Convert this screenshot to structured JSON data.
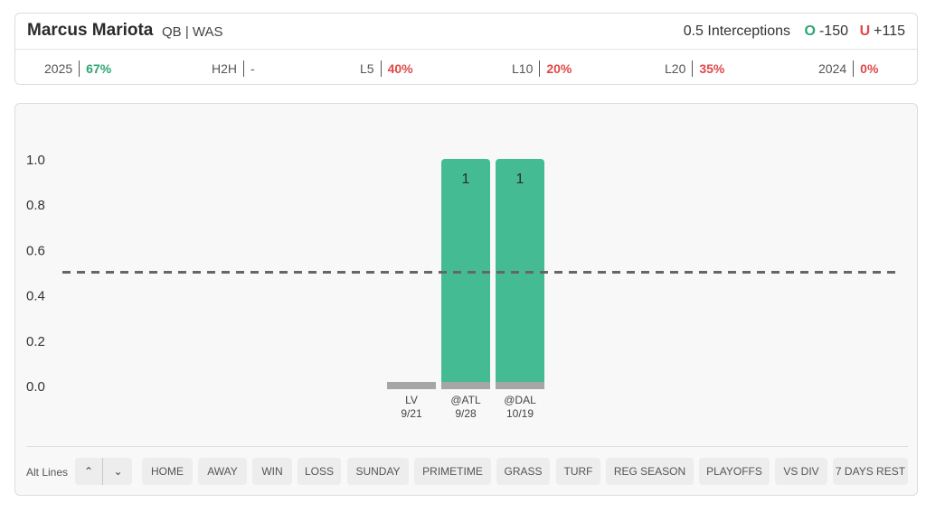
{
  "player": {
    "name": "Marcus Mariota",
    "meta": "QB | WAS"
  },
  "prop": {
    "line": "0.5 Interceptions",
    "over_letter": "O",
    "over_odds": "-150",
    "under_letter": "U",
    "under_odds": "+115"
  },
  "stats": [
    {
      "label": "2025",
      "value": "67%",
      "status": "good"
    },
    {
      "label": "H2H",
      "value": "-",
      "status": "none"
    },
    {
      "label": "L5",
      "value": "40%",
      "status": "bad"
    },
    {
      "label": "L10",
      "value": "20%",
      "status": "bad"
    },
    {
      "label": "L20",
      "value": "35%",
      "status": "bad"
    },
    {
      "label": "2024",
      "value": "0%",
      "status": "bad"
    }
  ],
  "colors": {
    "good": "#2fa572",
    "bad": "#e04848",
    "bar_hit": "#45bb94",
    "bar_miss": "#a6a6a6",
    "line": "#666666"
  },
  "chart_data": {
    "type": "bar",
    "categories": [
      "LV 9/21",
      "@ATL 9/28",
      "@DAL 10/19"
    ],
    "category_lines": [
      [
        "LV",
        "9/21"
      ],
      [
        "@ATL",
        "9/28"
      ],
      [
        "@DAL",
        "10/19"
      ]
    ],
    "values": [
      0,
      1,
      1
    ],
    "data_labels": [
      "",
      "1",
      "1"
    ],
    "reference_line": 0.5,
    "ylim": [
      0,
      1
    ],
    "yticks": [
      "0.0",
      "0.2",
      "0.4",
      "0.6",
      "0.8",
      "1.0"
    ],
    "title": "",
    "xlabel": "",
    "ylabel": ""
  },
  "filters": {
    "alt_lines_label": "Alt Lines",
    "up_icon": "chevron-up-icon",
    "down_icon": "chevron-down-icon",
    "up_glyph": "⌃",
    "down_glyph": "⌄",
    "chips": [
      "HOME",
      "AWAY",
      "WIN",
      "LOSS",
      "SUNDAY",
      "PRIMETIME",
      "GRASS",
      "TURF",
      "REG SEASON",
      "PLAYOFFS",
      "VS DIV",
      "7 DAYS REST"
    ]
  }
}
